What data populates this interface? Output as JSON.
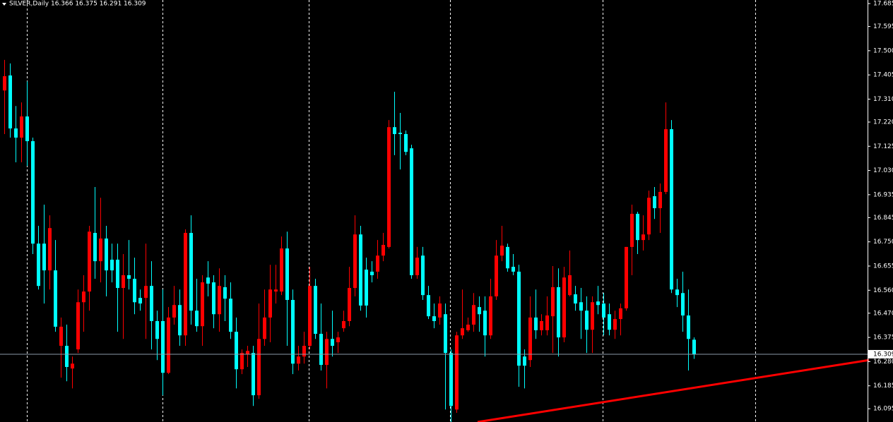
{
  "chart_data": {
    "type": "candlestick",
    "title": "SILVER,Daily  16.366 16.375 16.291 16.309",
    "up_color": "#ff0000",
    "down_color": "#00ffff",
    "ylim": [
      16.043,
      17.699
    ],
    "yticks": [
      17.685,
      17.595,
      {
        "value": 17.5,
        "label": "17.500"
      },
      17.405,
      {
        "value": 17.31,
        "label": "17.310"
      },
      {
        "value": 17.22,
        "label": "17.220"
      },
      17.125,
      {
        "value": 17.03,
        "label": "17.030"
      },
      16.935,
      16.845,
      {
        "value": 16.75,
        "label": "16.750"
      },
      16.655,
      {
        "value": 16.56,
        "label": "16.560"
      },
      {
        "value": 16.47,
        "label": "16.470"
      },
      16.375,
      {
        "value": 16.28,
        "label": "16.280"
      },
      16.185,
      16.095
    ],
    "last_price": 16.309,
    "trendline": {
      "x": [
        83.75,
        153
      ],
      "y": [
        16.043,
        16.286
      ],
      "color": "#ff0000"
    },
    "open": [
      17.344,
      17.403,
      17.195,
      17.159,
      17.242,
      17.145,
      16.743,
      16.743,
      16.638,
      16.638,
      16.342,
      16.342,
      16.253,
      16.328,
      16.513,
      16.555,
      16.785,
      16.674,
      16.763,
      16.68,
      16.68,
      16.569,
      16.619,
      16.605,
      16.53,
      16.53,
      16.577,
      16.439,
      16.439,
      16.236,
      16.453,
      16.502,
      16.383,
      16.785,
      16.48,
      16.419,
      16.61,
      16.591,
      16.466,
      16.572,
      16.527,
      16.397,
      16.25,
      16.308,
      16.314,
      16.148,
      16.369,
      16.453,
      16.555,
      16.555,
      16.724,
      16.522,
      16.272,
      16.3,
      16.342,
      16.577,
      16.389,
      16.267,
      16.369,
      16.356,
      16.411,
      16.439,
      16.569,
      16.779,
      16.641,
      16.633,
      16.633,
      16.696,
      16.73,
      17.2,
      17.178,
      17.173,
      17.117,
      16.619,
      16.696,
      16.541,
      16.458,
      16.453,
      16.466,
      16.314,
      16.092,
      16.383,
      16.403,
      16.425,
      16.494,
      16.48,
      16.383,
      16.536,
      16.696,
      16.73,
      16.652,
      16.633,
      16.3,
      16.286,
      16.453,
      16.403,
      16.403,
      16.458,
      16.572,
      16.375,
      16.541,
      16.544,
      16.513,
      16.48,
      16.405,
      16.516,
      16.508,
      16.466,
      16.405,
      16.447,
      16.489,
      16.73,
      16.86,
      16.757,
      16.779,
      16.929,
      16.882,
      16.946,
      17.192,
      16.563,
      16.549,
      16.461,
      16.366
    ],
    "high": [
      17.464,
      17.45,
      17.283,
      17.297,
      17.38,
      17.159,
      16.813,
      16.896,
      16.854,
      16.757,
      16.453,
      16.425,
      16.3,
      16.563,
      16.619,
      16.813,
      16.965,
      16.923,
      16.813,
      16.743,
      16.743,
      16.702,
      16.757,
      16.688,
      16.563,
      16.743,
      16.674,
      16.48,
      16.563,
      16.494,
      16.577,
      16.563,
      16.799,
      16.854,
      16.605,
      16.619,
      16.674,
      16.619,
      16.646,
      16.619,
      16.591,
      16.453,
      16.328,
      16.342,
      16.342,
      16.508,
      16.563,
      16.66,
      16.66,
      16.771,
      16.79,
      16.563,
      16.342,
      16.397,
      16.652,
      16.605,
      16.508,
      16.397,
      16.48,
      16.397,
      16.48,
      16.652,
      16.854,
      16.813,
      16.688,
      16.674,
      16.757,
      16.785,
      17.228,
      17.339,
      17.256,
      17.187,
      17.131,
      16.73,
      16.73,
      16.577,
      16.508,
      16.536,
      16.508,
      16.328,
      16.397,
      16.563,
      16.453,
      16.549,
      16.536,
      16.536,
      16.605,
      16.757,
      16.813,
      16.743,
      16.702,
      16.66,
      16.328,
      16.536,
      16.563,
      16.466,
      16.536,
      16.655,
      16.646,
      16.652,
      16.716,
      16.577,
      16.569,
      16.536,
      16.536,
      16.577,
      16.549,
      16.508,
      16.48,
      16.508,
      16.73,
      16.896,
      16.868,
      16.854,
      16.951,
      16.965,
      16.979,
      17.297,
      17.228,
      16.605,
      16.633,
      16.563,
      16.375
    ],
    "low": [
      17.173,
      17.159,
      17.062,
      17.062,
      17.048,
      16.702,
      16.563,
      16.508,
      16.563,
      16.397,
      16.217,
      16.203,
      16.175,
      16.314,
      16.397,
      16.48,
      16.605,
      16.591,
      16.536,
      16.591,
      16.397,
      16.369,
      16.563,
      16.466,
      16.48,
      16.369,
      16.328,
      16.286,
      16.148,
      16.231,
      16.425,
      16.342,
      16.342,
      16.425,
      16.397,
      16.342,
      16.536,
      16.411,
      16.397,
      16.439,
      16.369,
      16.175,
      16.231,
      16.259,
      16.106,
      16.134,
      16.342,
      16.356,
      16.508,
      16.541,
      16.342,
      16.231,
      16.245,
      16.272,
      16.328,
      16.369,
      16.245,
      16.175,
      16.3,
      16.314,
      16.397,
      16.419,
      16.536,
      16.48,
      16.453,
      16.591,
      16.605,
      16.674,
      16.724,
      17.09,
      17.034,
      17.09,
      16.605,
      16.605,
      16.522,
      16.447,
      16.411,
      16.425,
      16.092,
      16.043,
      16.079,
      16.369,
      16.397,
      16.397,
      16.397,
      16.3,
      16.369,
      16.522,
      16.674,
      16.633,
      16.619,
      16.181,
      16.175,
      16.259,
      16.369,
      16.383,
      16.383,
      16.314,
      16.3,
      16.356,
      16.536,
      16.48,
      16.369,
      16.314,
      16.314,
      16.466,
      16.383,
      16.383,
      16.369,
      16.383,
      16.48,
      16.619,
      16.702,
      16.716,
      16.757,
      16.84,
      16.785,
      16.937,
      16.549,
      16.494,
      16.397,
      16.245,
      16.291
    ],
    "close": [
      17.4,
      17.195,
      17.159,
      17.242,
      17.145,
      16.743,
      16.577,
      16.638,
      16.804,
      16.417,
      16.417,
      16.259,
      16.272,
      16.513,
      16.555,
      16.79,
      16.674,
      16.763,
      16.638,
      16.638,
      16.569,
      16.619,
      16.605,
      16.513,
      16.508,
      16.577,
      16.439,
      16.369,
      16.236,
      16.453,
      16.502,
      16.383,
      16.785,
      16.48,
      16.419,
      16.591,
      16.586,
      16.466,
      16.577,
      16.527,
      16.397,
      16.25,
      16.314,
      16.322,
      16.148,
      16.369,
      16.453,
      16.563,
      16.563,
      16.724,
      16.522,
      16.272,
      16.3,
      16.342,
      16.577,
      16.389,
      16.267,
      16.369,
      16.342,
      16.375,
      16.439,
      16.569,
      16.779,
      16.5,
      16.5,
      16.619,
      16.696,
      16.738,
      17.2,
      17.173,
      17.173,
      17.103,
      16.619,
      16.688,
      16.541,
      16.458,
      16.439,
      16.508,
      16.314,
      16.106,
      16.383,
      16.411,
      16.425,
      16.502,
      16.466,
      16.383,
      16.536,
      16.696,
      16.735,
      16.646,
      16.633,
      16.264,
      16.264,
      16.453,
      16.403,
      16.439,
      16.461,
      16.572,
      16.375,
      16.61,
      16.619,
      16.508,
      16.48,
      16.405,
      16.513,
      16.502,
      16.453,
      16.405,
      16.447,
      16.489,
      16.73,
      16.86,
      16.757,
      16.779,
      16.923,
      16.882,
      16.946,
      17.192,
      16.563,
      16.541,
      16.461,
      16.369,
      16.309
    ]
  }
}
